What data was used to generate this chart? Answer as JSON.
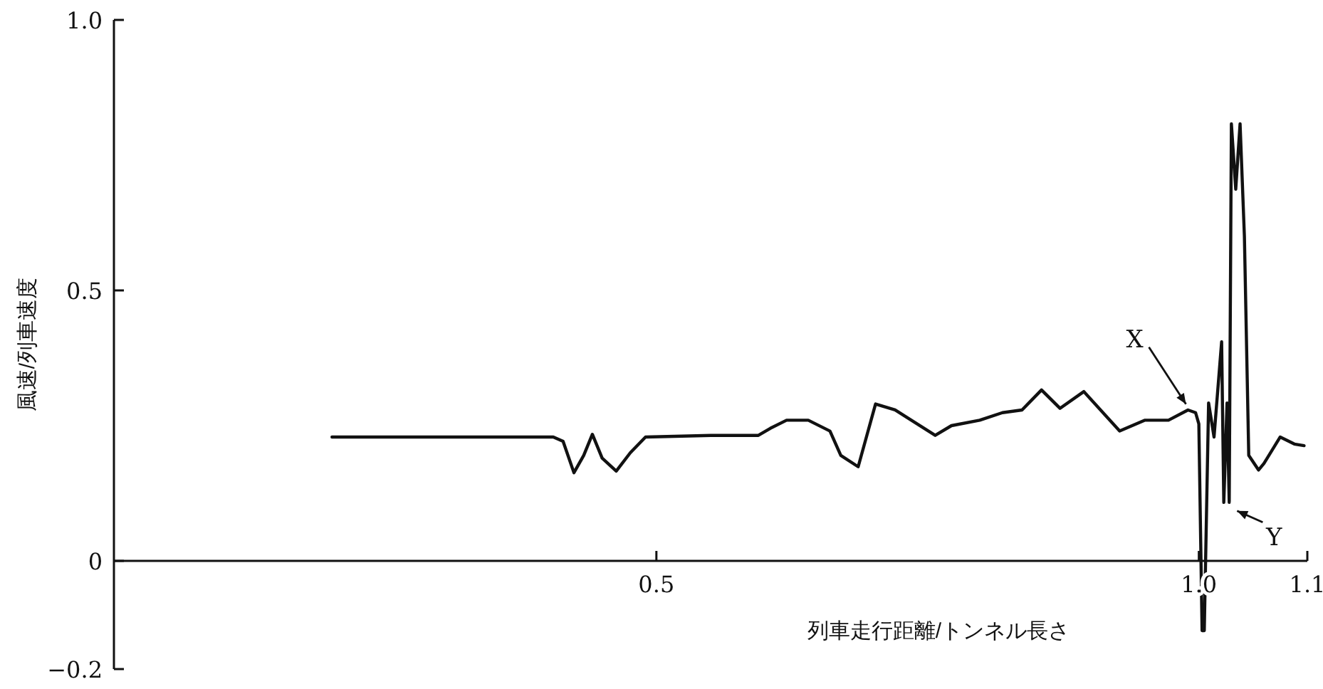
{
  "chart_data": {
    "type": "line",
    "xlabel": "列車走行距離/トンネル長さ",
    "ylabel": "風速/列車速度",
    "xlim": [
      0,
      1.1
    ],
    "ylim": [
      -0.2,
      1.0
    ],
    "xticks": [
      0.5,
      {
        "value": 1.0,
        "label": "1.0"
      },
      1.1
    ],
    "yticks": [
      {
        "value": -0.2,
        "label": "−0.2"
      },
      0,
      0.5,
      {
        "value": 1.0,
        "label": "1.0"
      }
    ],
    "grid": false,
    "marker": "none",
    "line_style": "solid",
    "series": [
      {
        "color": "#111111",
        "x": [
          0.201,
          0.3,
          0.405,
          0.414,
          0.424,
          0.433,
          0.441,
          0.45,
          0.463,
          0.476,
          0.49,
          0.55,
          0.594,
          0.605,
          0.62,
          0.64,
          0.66,
          0.67,
          0.686,
          0.702,
          0.72,
          0.757,
          0.772,
          0.798,
          0.819,
          0.837,
          0.855,
          0.872,
          0.894,
          0.927,
          0.95,
          0.972,
          0.99,
          0.997,
          1.0,
          1.003,
          1.005,
          1.009,
          1.014,
          1.021,
          1.023,
          1.026,
          1.028,
          1.03,
          1.034,
          1.038,
          1.042,
          1.046,
          1.055,
          1.06,
          1.075,
          1.088,
          1.097
        ],
        "values": [
          0.229,
          0.229,
          0.229,
          0.221,
          0.163,
          0.195,
          0.234,
          0.19,
          0.166,
          0.2,
          0.229,
          0.232,
          0.232,
          0.245,
          0.26,
          0.26,
          0.24,
          0.195,
          0.174,
          0.29,
          0.279,
          0.232,
          0.25,
          0.26,
          0.274,
          0.279,
          0.316,
          0.282,
          0.313,
          0.24,
          0.26,
          0.26,
          0.279,
          0.274,
          0.253,
          -0.129,
          -0.129,
          0.292,
          0.229,
          0.405,
          0.108,
          0.292,
          0.108,
          0.808,
          0.687,
          0.808,
          0.6,
          0.195,
          0.168,
          0.18,
          0.229,
          0.216,
          0.213
        ]
      }
    ],
    "annotations": [
      {
        "text": "X",
        "x": 0.996,
        "y": 0.274
      },
      {
        "text": "Y",
        "x": 1.03,
        "y": 0.103
      }
    ]
  }
}
